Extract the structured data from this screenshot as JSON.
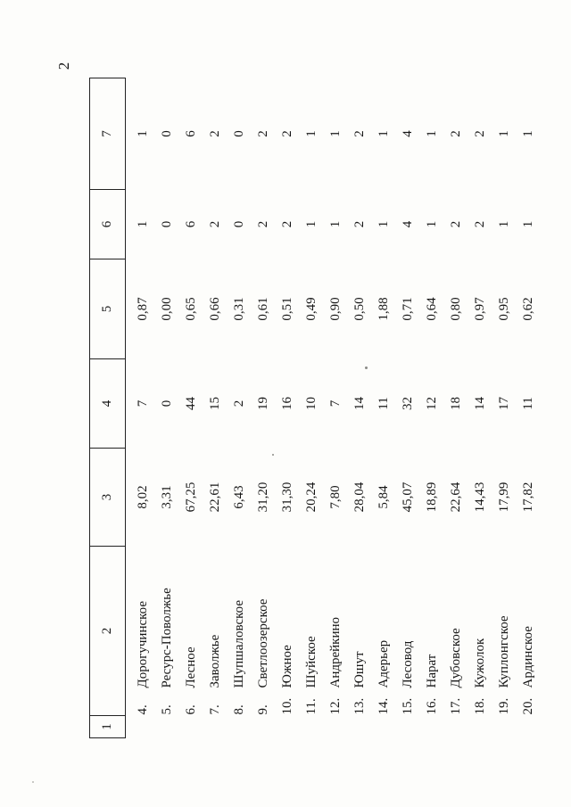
{
  "page_number": "2",
  "table": {
    "headers": [
      "1",
      "2",
      "3",
      "4",
      "5",
      "6",
      "7"
    ],
    "rows": [
      {
        "num": "4.",
        "name": "Дорогучинское",
        "c3": "8,02",
        "c4": "7",
        "c5": "0,87",
        "c6": "1",
        "c7": "1"
      },
      {
        "num": "5.",
        "name": "Ресурс-Поволжье",
        "c3": "3,31",
        "c4": "0",
        "c5": "0,00",
        "c6": "0",
        "c7": "0"
      },
      {
        "num": "6.",
        "name": "Лесное",
        "c3": "67,25",
        "c4": "44",
        "c5": "0,65",
        "c6": "6",
        "c7": "6"
      },
      {
        "num": "7.",
        "name": "Заволжье",
        "c3": "22,61",
        "c4": "15",
        "c5": "0,66",
        "c6": "2",
        "c7": "2"
      },
      {
        "num": "8.",
        "name": "Шупшаловское",
        "c3": "6,43",
        "c4": "2",
        "c5": "0,31",
        "c6": "0",
        "c7": "0"
      },
      {
        "num": "9.",
        "name": "Светлоозерское",
        "c3": "31,20",
        "c4": "19",
        "c5": "0,61",
        "c6": "2",
        "c7": "2"
      },
      {
        "num": "10.",
        "name": "Южное",
        "c3": "31,30",
        "c4": "16",
        "c5": "0,51",
        "c6": "2",
        "c7": "2"
      },
      {
        "num": "11.",
        "name": "Шуйское",
        "c3": "20,24",
        "c4": "10",
        "c5": "0,49",
        "c6": "1",
        "c7": "1"
      },
      {
        "num": "12.",
        "name": "Андрейкино",
        "c3": "7,80",
        "c4": "7",
        "c5": "0,90",
        "c6": "1",
        "c7": "1"
      },
      {
        "num": "13.",
        "name": "Юшут",
        "c3": "28,04",
        "c4": "14",
        "c5": "0,50",
        "c6": "2",
        "c7": "2"
      },
      {
        "num": "14.",
        "name": "Адерьер",
        "c3": "5,84",
        "c4": "11",
        "c5": "1,88",
        "c6": "1",
        "c7": "1"
      },
      {
        "num": "15.",
        "name": "Лесовод",
        "c3": "45,07",
        "c4": "32",
        "c5": "0,71",
        "c6": "4",
        "c7": "4"
      },
      {
        "num": "16.",
        "name": "Нарат",
        "c3": "18,89",
        "c4": "12",
        "c5": "0,64",
        "c6": "1",
        "c7": "1"
      },
      {
        "num": "17.",
        "name": "Дубовское",
        "c3": "22,64",
        "c4": "18",
        "c5": "0,80",
        "c6": "2",
        "c7": "2"
      },
      {
        "num": "18.",
        "name": "Кужолок",
        "c3": "14,43",
        "c4": "14",
        "c5": "0,97",
        "c6": "2",
        "c7": "2"
      },
      {
        "num": "19.",
        "name": "Куплонгское",
        "c3": "17,99",
        "c4": "17",
        "c5": "0,95",
        "c6": "1",
        "c7": "1"
      },
      {
        "num": "20.",
        "name": "Ардинское",
        "c3": "17,82",
        "c4": "11",
        "c5": "0,62",
        "c6": "1",
        "c7": "1"
      }
    ]
  }
}
